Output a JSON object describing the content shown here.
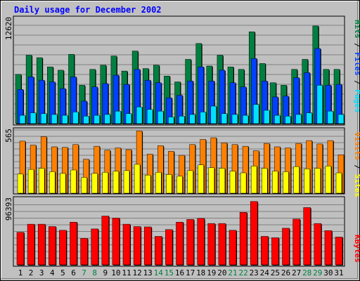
{
  "title": "Daily usage for December 2002",
  "chart_data": [
    {
      "type": "bar",
      "categories": [
        "1",
        "2",
        "3",
        "4",
        "5",
        "6",
        "7",
        "8",
        "9",
        "10",
        "11",
        "12",
        "13",
        "14",
        "15",
        "16",
        "17",
        "18",
        "19",
        "20",
        "21",
        "22",
        "23",
        "24",
        "25",
        "26",
        "27",
        "28",
        "29",
        "30",
        "31"
      ],
      "weekend_days": [
        "7",
        "8",
        "14",
        "15",
        "21",
        "22",
        "28",
        "29"
      ],
      "ymax_label": "12620",
      "ylim": [
        0,
        12620
      ],
      "series": [
        {
          "name": "Hits",
          "color": "#008040",
          "values": [
            5900,
            8200,
            7900,
            6800,
            6400,
            8300,
            4600,
            6500,
            7000,
            8100,
            6300,
            8700,
            6600,
            7000,
            5700,
            5000,
            7700,
            9600,
            6900,
            8200,
            6800,
            6500,
            11000,
            7200,
            4900,
            4600,
            6500,
            7700,
            11700,
            6500,
            6500
          ]
        },
        {
          "name": "Files",
          "color": "#0040ff",
          "values": [
            4100,
            5600,
            5200,
            5000,
            4200,
            5600,
            2700,
            4400,
            4800,
            5800,
            4700,
            6500,
            5200,
            4900,
            3100,
            3400,
            5100,
            6800,
            5100,
            6400,
            4900,
            4400,
            7800,
            5100,
            3200,
            3300,
            5500,
            6100,
            9000,
            4600,
            4700
          ]
        },
        {
          "name": "Pages",
          "color": "#00e0ff",
          "values": [
            1000,
            1300,
            1200,
            1100,
            1000,
            1400,
            900,
            1000,
            1100,
            1500,
            1200,
            2000,
            1700,
            1500,
            800,
            900,
            1100,
            1400,
            2100,
            1200,
            1100,
            1000,
            2300,
            1600,
            1000,
            900,
            1100,
            1300,
            4600,
            1500,
            1100
          ]
        }
      ]
    },
    {
      "type": "bar",
      "categories": [
        "1",
        "2",
        "3",
        "4",
        "5",
        "6",
        "7",
        "8",
        "9",
        "10",
        "11",
        "12",
        "13",
        "14",
        "15",
        "16",
        "17",
        "18",
        "19",
        "20",
        "21",
        "22",
        "23",
        "24",
        "25",
        "26",
        "27",
        "28",
        "29",
        "30",
        "31"
      ],
      "ymax_label": "565",
      "ylim": [
        0,
        565
      ],
      "series": [
        {
          "name": "Visits",
          "color": "#ff8000",
          "values": [
            460,
            425,
            500,
            410,
            405,
            430,
            300,
            415,
            380,
            400,
            385,
            550,
            345,
            420,
            370,
            335,
            430,
            475,
            490,
            445,
            430,
            415,
            375,
            440,
            410,
            400,
            440,
            465,
            435,
            465,
            340
          ]
        },
        {
          "name": "Sites",
          "color": "#ffff00",
          "values": [
            170,
            210,
            220,
            190,
            175,
            205,
            140,
            175,
            185,
            195,
            200,
            255,
            160,
            185,
            165,
            150,
            200,
            250,
            225,
            220,
            195,
            180,
            240,
            220,
            195,
            190,
            235,
            215,
            220,
            240,
            180
          ]
        }
      ]
    },
    {
      "type": "bar",
      "categories": [
        "1",
        "2",
        "3",
        "4",
        "5",
        "6",
        "7",
        "8",
        "9",
        "10",
        "11",
        "12",
        "13",
        "14",
        "15",
        "16",
        "17",
        "18",
        "19",
        "20",
        "21",
        "22",
        "23",
        "24",
        "25",
        "26",
        "27",
        "28",
        "29",
        "30",
        "31"
      ],
      "ymax_label": "96393",
      "ylim": [
        0,
        96393
      ],
      "series": [
        {
          "name": "KBytes",
          "color": "#ff0000",
          "values": [
            48000,
            60000,
            60000,
            56500,
            51000,
            63000,
            39000,
            53000,
            72000,
            69000,
            60000,
            56500,
            56000,
            42000,
            52000,
            63000,
            67000,
            68500,
            61000,
            61000,
            51000,
            77500,
            93500,
            42000,
            40000,
            54000,
            67500,
            84500,
            61000,
            50500,
            41000
          ]
        }
      ]
    }
  ]
}
